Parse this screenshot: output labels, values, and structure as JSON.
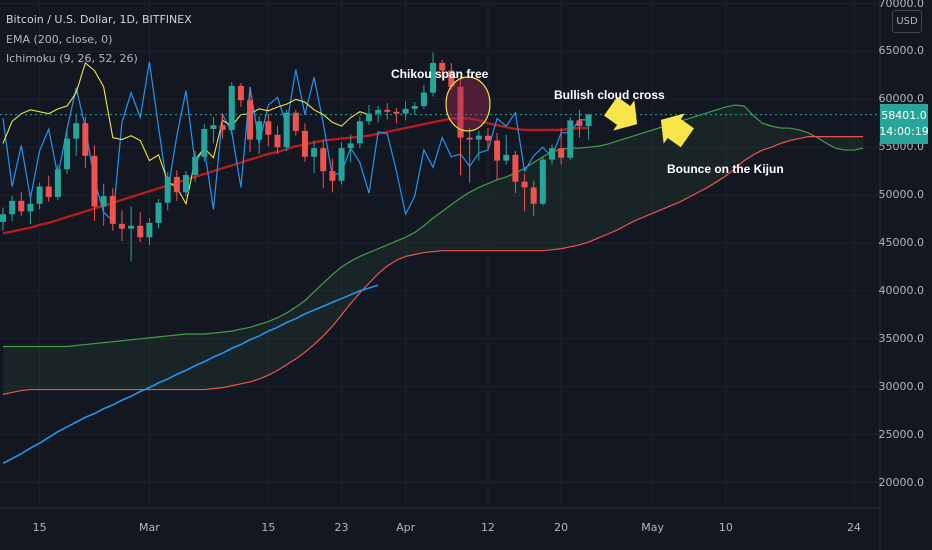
{
  "chart_data": {
    "type": "candlestick",
    "title": "Bitcoin / U.S. Dollar, 1D, BITFINEX",
    "indicators": [
      "EMA (200, close, 0)",
      "Ichimoku (9, 26, 52, 26)"
    ],
    "currency": "USD",
    "last_price": "58401.0",
    "countdown": "14:00:19",
    "y_ticks": [
      "70000.0",
      "65000.0",
      "60000.0",
      "55000.0",
      "50000.0",
      "45000.0",
      "40000.0",
      "35000.0",
      "30000.0",
      "25000.0",
      "20000.0"
    ],
    "x_ticks": [
      "15",
      "Mar",
      "15",
      "23",
      "Apr",
      "12",
      "20",
      "May",
      "10",
      "24"
    ],
    "ylim": [
      17500,
      71500
    ],
    "annotations": [
      "Chikou span free",
      "Bullish cloud cross",
      "Bounce on the Kijun"
    ],
    "candles": [
      [
        47200,
        48700,
        46300,
        48000
      ],
      [
        48000,
        49900,
        47300,
        49400
      ],
      [
        49400,
        50300,
        47800,
        48300
      ],
      [
        48300,
        49800,
        47000,
        49100
      ],
      [
        49100,
        51300,
        48500,
        50900
      ],
      [
        50900,
        52000,
        49300,
        49800
      ],
      [
        49800,
        53200,
        49500,
        52700
      ],
      [
        52700,
        56800,
        52200,
        55900
      ],
      [
        55900,
        58400,
        54100,
        57500
      ],
      [
        57500,
        58200,
        52800,
        54100
      ],
      [
        54100,
        55200,
        47300,
        48800
      ],
      [
        48800,
        51200,
        46800,
        49900
      ],
      [
        49900,
        50700,
        46300,
        47000
      ],
      [
        47000,
        48400,
        45200,
        46500
      ],
      [
        46500,
        48800,
        43100,
        46800
      ],
      [
        46800,
        48200,
        45100,
        45600
      ],
      [
        45600,
        47600,
        44800,
        47100
      ],
      [
        47100,
        49600,
        46500,
        49200
      ],
      [
        49200,
        52400,
        48400,
        51900
      ],
      [
        51900,
        52600,
        49400,
        50300
      ],
      [
        50300,
        52500,
        49900,
        52100
      ],
      [
        52100,
        54600,
        51400,
        54000
      ],
      [
        54000,
        57400,
        53500,
        56900
      ],
      [
        56900,
        58100,
        55400,
        57300
      ],
      [
        57300,
        58500,
        55900,
        56800
      ],
      [
        56800,
        61800,
        56300,
        61400
      ],
      [
        61400,
        61700,
        59200,
        59900
      ],
      [
        59900,
        61000,
        54500,
        55800
      ],
      [
        55800,
        58200,
        54300,
        57700
      ],
      [
        57700,
        58500,
        55100,
        56300
      ],
      [
        56300,
        57200,
        54300,
        55000
      ],
      [
        55000,
        58900,
        54600,
        58600
      ],
      [
        58600,
        58900,
        56200,
        56700
      ],
      [
        56700,
        57500,
        53500,
        54000
      ],
      [
        54000,
        55700,
        52300,
        54900
      ],
      [
        54900,
        55800,
        50700,
        52500
      ],
      [
        52500,
        53800,
        50300,
        51500
      ],
      [
        51500,
        55500,
        51100,
        54900
      ],
      [
        54900,
        56300,
        53400,
        55400
      ],
      [
        55400,
        58200,
        54900,
        57700
      ],
      [
        57700,
        59400,
        57300,
        58500
      ],
      [
        58500,
        59300,
        57600,
        58900
      ],
      [
        58900,
        59600,
        57900,
        58700
      ],
      [
        58700,
        59100,
        57500,
        58500
      ],
      [
        58500,
        59800,
        57800,
        59000
      ],
      [
        59000,
        59700,
        58400,
        59300
      ],
      [
        59300,
        61500,
        59000,
        60700
      ],
      [
        60700,
        64900,
        60300,
        63800
      ],
      [
        63800,
        64100,
        62200,
        63000
      ],
      [
        63000,
        63800,
        61000,
        61300
      ],
      [
        61300,
        62100,
        52100,
        56000
      ],
      [
        56000,
        57000,
        51300,
        55800
      ],
      [
        55800,
        56700,
        53600,
        56200
      ],
      [
        56200,
        57000,
        54800,
        55700
      ],
      [
        55700,
        56500,
        51500,
        53600
      ],
      [
        53600,
        56300,
        53200,
        54200
      ],
      [
        54200,
        54600,
        50200,
        51400
      ],
      [
        51400,
        52200,
        48300,
        50800
      ],
      [
        50800,
        51500,
        47800,
        49100
      ],
      [
        49100,
        54000,
        48900,
        53700
      ],
      [
        53700,
        55300,
        53200,
        54900
      ],
      [
        54900,
        57000,
        53200,
        53900
      ],
      [
        53900,
        58100,
        53700,
        57800
      ],
      [
        57800,
        58900,
        56000,
        57200
      ],
      [
        57200,
        58500,
        55800,
        58400
      ]
    ],
    "series": [
      {
        "name": "Tenkan",
        "values": [
          58000,
          50900,
          55200,
          49700,
          54600,
          56900,
          52000,
          56900,
          61200,
          57100,
          51500,
          48200,
          47300,
          57600,
          60700,
          58100,
          63900,
          57100,
          50400,
          56200,
          60900,
          53300,
          54900,
          48500,
          58400,
          56600,
          50800,
          61300,
          55400,
          59400,
          60200,
          57300,
          63100,
          58400,
          62300,
          57500,
          52000,
          52400,
          54900,
          53400,
          50200,
          56600,
          56400,
          52500,
          48000,
          49900,
          54700,
          52900,
          56000,
          54000,
          54300,
          53000,
          54400,
          54700,
          58000,
          57200,
          58600,
          52500,
          54100,
          55000,
          54000,
          56500,
          56500,
          57900,
          57800
        ]
      },
      {
        "name": "Kijun",
        "values": [
          46000,
          46200,
          46400,
          46600,
          46900,
          47100,
          47400,
          47700,
          48000,
          48300,
          48600,
          48900,
          49200,
          49500,
          49800,
          50100,
          50400,
          50700,
          51000,
          51300,
          51600,
          51900,
          52200,
          52500,
          52800,
          53100,
          53400,
          53700,
          54000,
          54300,
          54500,
          54800,
          55100,
          55300,
          55500,
          55700,
          55800,
          55900,
          56000,
          56100,
          56200,
          56400,
          56600,
          56800,
          57000,
          57200,
          57400,
          57600,
          57800,
          58000,
          58000,
          58000,
          57800,
          57500,
          57300,
          57100,
          56900,
          56800,
          56800,
          56800,
          56800,
          56800,
          56900,
          57000,
          57000
        ]
      },
      {
        "name": "Span A",
        "values": [
          34200,
          34200,
          34200,
          34200,
          34200,
          34200,
          34200,
          34200,
          34300,
          34400,
          34500,
          34600,
          34700,
          34800,
          34900,
          35000,
          35100,
          35200,
          35300,
          35400,
          35500,
          35500,
          35500,
          35600,
          35700,
          35800,
          36000,
          36200,
          36500,
          36800,
          37200,
          37700,
          38300,
          39000,
          39900,
          40800,
          41700,
          42500,
          43100,
          43600,
          44000,
          44400,
          44800,
          45200,
          45600,
          46100,
          46800,
          47600,
          48300,
          49000,
          49700,
          50300,
          50800,
          51200,
          51600,
          51900,
          52300,
          52800,
          53400,
          54000,
          54500,
          54800,
          54900,
          54900,
          55000,
          55100,
          55300,
          55600,
          55900,
          56200,
          56500,
          56800,
          57100,
          57400,
          57700,
          58000,
          58300,
          58600,
          58900,
          59200,
          59400,
          59300,
          58300,
          57500,
          57200,
          57000,
          57000,
          56800,
          56500,
          56000,
          55400,
          54900,
          54700,
          54700,
          54900
        ]
      },
      {
        "name": "Span B",
        "values": [
          29200,
          29400,
          29600,
          29700,
          29700,
          29700,
          29700,
          29700,
          29700,
          29700,
          29700,
          29700,
          29700,
          29700,
          29700,
          29700,
          29700,
          29700,
          29700,
          29700,
          29700,
          29700,
          29700,
          29800,
          29900,
          30100,
          30300,
          30500,
          30800,
          31200,
          31700,
          32300,
          32900,
          33600,
          34400,
          35300,
          36300,
          37500,
          38700,
          39800,
          40800,
          41800,
          42600,
          43200,
          43600,
          43800,
          44000,
          44100,
          44200,
          44200,
          44200,
          44200,
          44200,
          44200,
          44200,
          44200,
          44200,
          44200,
          44200,
          44200,
          44300,
          44400,
          44600,
          44800,
          45100,
          45500,
          45900,
          46300,
          46800,
          47300,
          47700,
          48100,
          48500,
          48900,
          49300,
          49800,
          50300,
          50800,
          51400,
          52000,
          52800,
          53600,
          54200,
          54700,
          55000,
          55400,
          55700,
          55900,
          56100,
          56100,
          56100,
          56100,
          56100,
          56100,
          56100
        ]
      },
      {
        "name": "Chikou",
        "values": [
          55400,
          57700,
          58500,
          58900,
          58700,
          58500,
          59000,
          59300,
          60700,
          63800,
          63000,
          61300,
          56000,
          55800,
          56200,
          55700,
          53600,
          54200,
          51400,
          50800,
          49100,
          53700,
          54900,
          53900,
          57800,
          57200,
          58400,
          58500,
          59000,
          58800,
          59200,
          59500,
          60000,
          59700,
          58900,
          58400,
          57600,
          57200,
          58100,
          58700,
          58400
        ]
      },
      {
        "name": "EMA 200",
        "values": [
          22000,
          22500,
          23000,
          23600,
          24100,
          24700,
          25300,
          25800,
          26300,
          26800,
          27200,
          27700,
          28100,
          28600,
          29000,
          29500,
          29900,
          30400,
          30800,
          31300,
          31700,
          32200,
          32600,
          33100,
          33500,
          34000,
          34400,
          34900,
          35300,
          35800,
          36200,
          36700,
          37100,
          37600,
          38000,
          38400,
          38800,
          39200,
          39600,
          40000,
          40300,
          40600
        ]
      }
    ]
  }
}
